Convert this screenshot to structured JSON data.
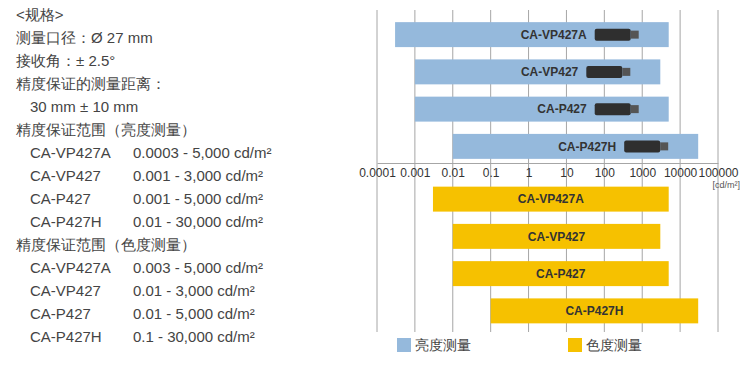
{
  "spec_panel": {
    "title": "<规格>",
    "lines": [
      "测量口径：Ø 27 mm",
      "接收角：± 2.5°",
      "精度保证的测量距离："
    ],
    "distance": "30 mm ± 10 mm",
    "tables": [
      {
        "heading": "精度保证范围（亮度测量）",
        "rows": [
          [
            "CA-VP427A",
            "0.0003 - 5,000 cd/m²"
          ],
          [
            "CA-VP427",
            "0.001 - 3,000 cd/m²"
          ],
          [
            "CA-P427",
            "0.001 - 5,000 cd/m²"
          ],
          [
            "CA-P427H",
            "0.01 - 30,000 cd/m²"
          ]
        ]
      },
      {
        "heading": "精度保证范围（色度测量）",
        "rows": [
          [
            "CA-VP427A",
            "0.003 - 5,000 cd/m²"
          ],
          [
            "CA-VP427",
            "0.01 - 3,000 cd/m²"
          ],
          [
            "CA-P427",
            "0.01 - 5,000 cd/m²"
          ],
          [
            "CA-P427H",
            "0.1 - 30,000 cd/m²"
          ]
        ]
      }
    ]
  },
  "chart_data": {
    "type": "bar",
    "orientation": "horizontal",
    "log": "x",
    "grid": true,
    "legend": "bottom",
    "tick_labels": "x",
    "x_label": "[cd/m²]",
    "categories": [
      "CA-VP427A",
      "CA-VP427",
      "CA-P427",
      "CA-P427H"
    ],
    "series": [
      {
        "name": "亮度测量",
        "color": "#95b9dc",
        "values": [
          [
            0.0003,
            5000
          ],
          [
            0.001,
            3000
          ],
          [
            0.001,
            5000
          ],
          [
            0.01,
            30000
          ]
        ]
      },
      {
        "name": "色度测量",
        "color": "#f6c100",
        "values": [
          [
            0.003,
            5000
          ],
          [
            0.01,
            3000
          ],
          [
            0.01,
            5000
          ],
          [
            0.1,
            30000
          ]
        ]
      }
    ],
    "xlim": [
      0.0001,
      100000
    ],
    "xticks": [
      0.0001,
      0.001,
      0.01,
      0.1,
      1,
      10,
      100,
      1000,
      10000,
      100000
    ]
  }
}
